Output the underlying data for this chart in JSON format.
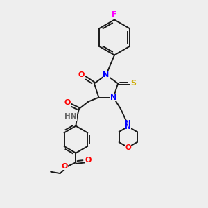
{
  "background_color": "#eeeeee",
  "bond_color": "#1a1a1a",
  "atom_colors": {
    "N": "#0000ff",
    "O": "#ff0000",
    "S": "#ccaa00",
    "F": "#ff00ff",
    "H": "#666666",
    "C": "#1a1a1a"
  },
  "title": ""
}
